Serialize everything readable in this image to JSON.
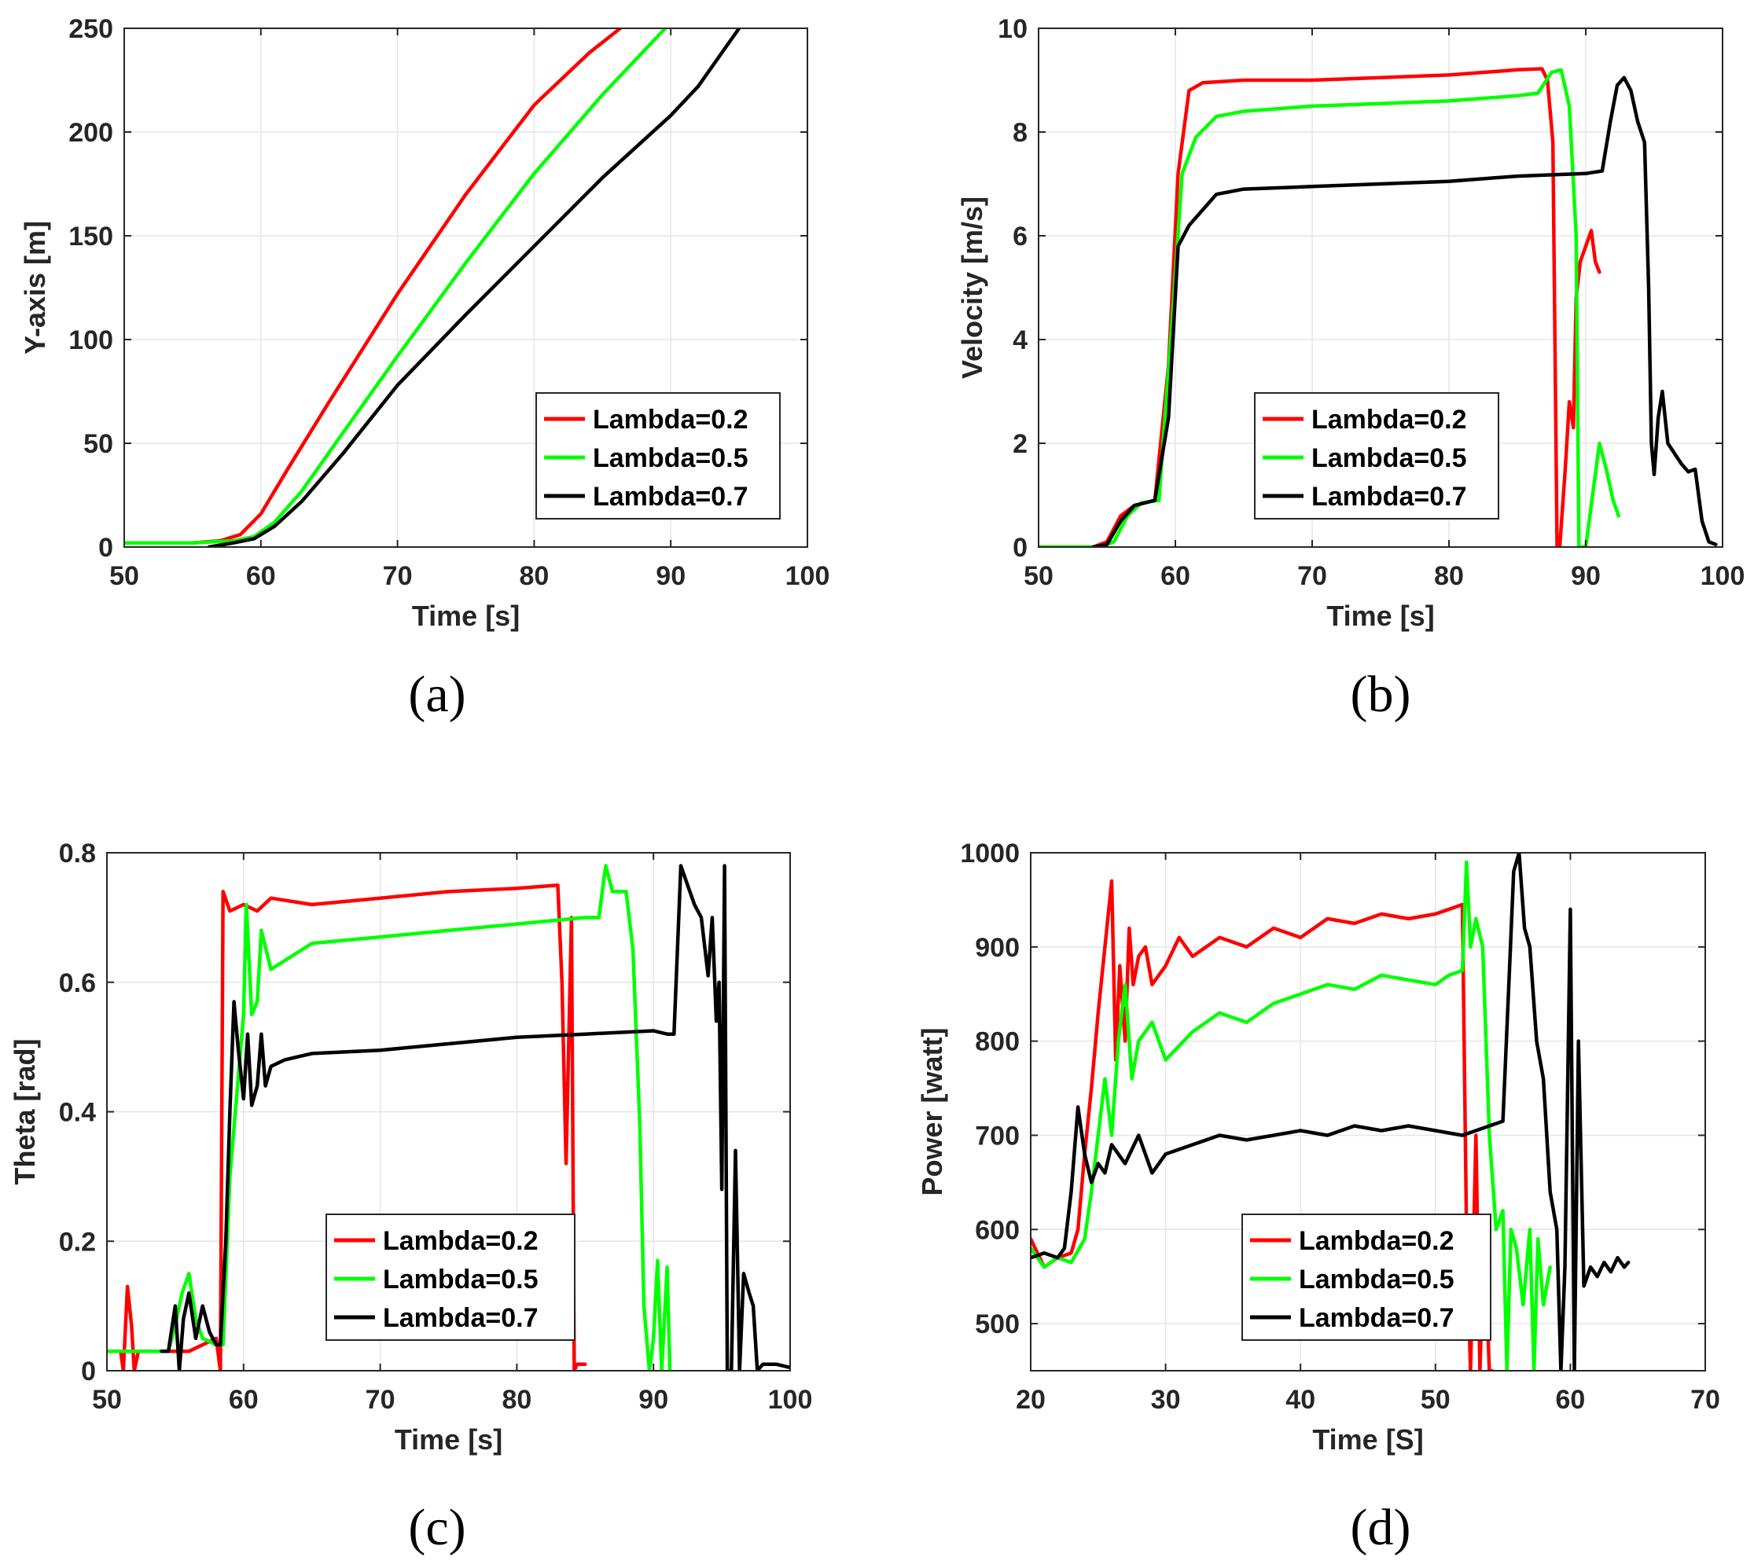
{
  "colors": {
    "red": "#ff0000",
    "green": "#00ff00",
    "black": "#000000",
    "grid": "#e6e6e6",
    "axis": "#262626"
  },
  "chart_data": [
    {
      "id": "a",
      "type": "line",
      "panel_label": "(a)",
      "xlabel": "Time [s]",
      "ylabel": "Y-axis [m]",
      "xlim": [
        50,
        100
      ],
      "ylim": [
        0,
        250
      ],
      "xticks": [
        50,
        60,
        70,
        80,
        90,
        100
      ],
      "yticks": [
        0,
        50,
        100,
        150,
        200,
        250
      ],
      "xtick_labels": [
        "50",
        "60",
        "70",
        "80",
        "90",
        "100"
      ],
      "ytick_labels": [
        "0",
        "50",
        "100",
        "150",
        "200",
        "250"
      ],
      "grid": true,
      "legend_position": "lower-right",
      "series": [
        {
          "name": "Lambda=0.2",
          "color": "#ff0000",
          "x": [
            50,
            55,
            57,
            58.5,
            60,
            62,
            65,
            70,
            75,
            80,
            84,
            86.3
          ],
          "y": [
            2,
            2,
            3,
            6,
            16,
            38,
            70,
            122,
            170,
            213,
            238,
            250
          ]
        },
        {
          "name": "Lambda=0.5",
          "color": "#00ff00",
          "x": [
            50,
            55,
            58,
            59.5,
            61,
            63,
            66,
            70,
            75,
            80,
            85,
            89.6
          ],
          "y": [
            2,
            2,
            3,
            5,
            12,
            27,
            55,
            92,
            137,
            180,
            218,
            250
          ]
        },
        {
          "name": "Lambda=0.7",
          "color": "#000000",
          "x": [
            56.2,
            58,
            59.5,
            61,
            63,
            66,
            70,
            75,
            80,
            85,
            90,
            92,
            95
          ],
          "y": [
            0,
            2,
            4,
            10,
            22,
            45,
            78,
            112,
            145,
            178,
            208,
            222,
            250
          ]
        }
      ]
    },
    {
      "id": "b",
      "type": "line",
      "panel_label": "(b)",
      "xlabel": "Time [s]",
      "ylabel": "Velocity [m/s]",
      "xlim": [
        50,
        100
      ],
      "ylim": [
        0,
        10
      ],
      "xticks": [
        50,
        60,
        70,
        80,
        90,
        100
      ],
      "yticks": [
        0,
        2,
        4,
        6,
        8,
        10
      ],
      "xtick_labels": [
        "50",
        "60",
        "70",
        "80",
        "90",
        "100"
      ],
      "ytick_labels": [
        "0",
        "2",
        "4",
        "6",
        "8",
        "10"
      ],
      "grid": true,
      "legend_position": "lower-right",
      "series": [
        {
          "name": "Lambda=0.2",
          "color": "#ff0000",
          "x": [
            50,
            54,
            55,
            56,
            57,
            58.5,
            59.5,
            60.2,
            61,
            62,
            65,
            70,
            75,
            80,
            85,
            86.8,
            87.2,
            87.6,
            87.9,
            88.1,
            88.5,
            88.8,
            89.1,
            89.3,
            89.6,
            90,
            90.4,
            90.7,
            91
          ],
          "y": [
            0,
            0,
            0.1,
            0.6,
            0.8,
            0.9,
            3.5,
            7.2,
            8.8,
            8.95,
            9.0,
            9.0,
            9.05,
            9.1,
            9.2,
            9.22,
            9.0,
            7.8,
            0,
            0,
            1.5,
            2.8,
            2.3,
            4.8,
            5.5,
            5.8,
            6.1,
            5.5,
            5.3
          ]
        },
        {
          "name": "Lambda=0.5",
          "color": "#00ff00",
          "x": [
            50,
            54.5,
            55.5,
            56.5,
            57.5,
            58.8,
            59.8,
            60.5,
            61.5,
            63,
            65,
            70,
            75,
            80,
            85,
            86.5,
            87.5,
            88.2,
            88.8,
            89.3,
            89.5,
            90,
            90.5,
            91,
            91.5,
            92,
            92.4
          ],
          "y": [
            0,
            0,
            0.1,
            0.6,
            0.85,
            0.9,
            4.5,
            7.2,
            7.9,
            8.3,
            8.4,
            8.5,
            8.55,
            8.6,
            8.7,
            8.75,
            9.15,
            9.2,
            8.5,
            6.0,
            0,
            0,
            1.0,
            2.0,
            1.5,
            0.9,
            0.6
          ]
        },
        {
          "name": "Lambda=0.7",
          "color": "#000000",
          "x": [
            54,
            55,
            56,
            57,
            58.5,
            59.5,
            60.2,
            61,
            62,
            63,
            65,
            70,
            75,
            80,
            85,
            90,
            91.2,
            91.8,
            92.3,
            92.8,
            93.3,
            93.8,
            94.3,
            94.6,
            94.8,
            95.0,
            95.3,
            95.6,
            96,
            96.5,
            97,
            97.5,
            98,
            98.5,
            99,
            99.5
          ],
          "y": [
            0,
            0.05,
            0.5,
            0.8,
            0.9,
            2.5,
            5.8,
            6.2,
            6.5,
            6.8,
            6.9,
            6.95,
            7.0,
            7.05,
            7.15,
            7.2,
            7.25,
            8.2,
            8.9,
            9.05,
            8.8,
            8.2,
            7.8,
            5.0,
            2.0,
            1.4,
            2.5,
            3.0,
            2.0,
            1.8,
            1.6,
            1.45,
            1.5,
            0.5,
            0.1,
            0.05
          ]
        }
      ]
    },
    {
      "id": "c",
      "type": "line",
      "panel_label": "(c)",
      "xlabel": "Time [s]",
      "ylabel": "Theta [rad]",
      "xlim": [
        50,
        100
      ],
      "ylim": [
        0,
        0.8
      ],
      "xticks": [
        50,
        60,
        70,
        80,
        90,
        100
      ],
      "yticks": [
        0,
        0.2,
        0.4,
        0.6,
        0.8
      ],
      "xtick_labels": [
        "50",
        "60",
        "70",
        "80",
        "90",
        "100"
      ],
      "ytick_labels": [
        "0",
        "0.2",
        "0.4",
        "0.6",
        "0.8"
      ],
      "grid": true,
      "legend_position": "lower-center",
      "series": [
        {
          "name": "Lambda=0.2",
          "color": "#ff0000",
          "x": [
            50,
            51,
            51.2,
            51.5,
            51.8,
            52,
            52.3,
            53,
            54,
            55,
            56,
            57,
            58,
            58.3,
            58.5,
            59,
            60,
            61,
            62,
            65,
            70,
            75,
            80,
            83,
            83.3,
            83.6,
            84,
            84.2,
            84.4,
            84.6,
            85
          ],
          "y": [
            0.03,
            0.03,
            0,
            0.13,
            0.07,
            0.0,
            0.03,
            0.03,
            0.03,
            0.03,
            0.03,
            0.04,
            0.05,
            0.0,
            0.74,
            0.71,
            0.72,
            0.71,
            0.73,
            0.72,
            0.73,
            0.74,
            0.745,
            0.75,
            0.6,
            0.32,
            0.7,
            0,
            0.01,
            0.01,
            0.01
          ]
        },
        {
          "name": "Lambda=0.5",
          "color": "#00ff00",
          "x": [
            50,
            53,
            54.5,
            55,
            55.5,
            56,
            56.5,
            57,
            58,
            58.5,
            59,
            60,
            60.2,
            60.6,
            61,
            61.3,
            62,
            65,
            70,
            75,
            80,
            85,
            86,
            86.5,
            87,
            88,
            88.5,
            89,
            89.3,
            89.7,
            90,
            90.3,
            90.6,
            91,
            91.2
          ],
          "y": [
            0.03,
            0.03,
            0.03,
            0.07,
            0.12,
            0.15,
            0.08,
            0.05,
            0.04,
            0.04,
            0.3,
            0.55,
            0.72,
            0.55,
            0.57,
            0.68,
            0.62,
            0.66,
            0.67,
            0.68,
            0.69,
            0.7,
            0.7,
            0.78,
            0.74,
            0.74,
            0.65,
            0.38,
            0.1,
            0,
            0.05,
            0.17,
            0,
            0.16,
            0
          ]
        },
        {
          "name": "Lambda=0.7",
          "color": "#000000",
          "x": [
            54,
            54.5,
            55,
            55.3,
            55.6,
            56,
            56.5,
            57,
            57.5,
            58,
            58.3,
            58.7,
            59,
            59.3,
            59.6,
            60,
            60.3,
            60.6,
            61,
            61.3,
            61.6,
            62,
            63,
            65,
            70,
            75,
            80,
            85,
            90,
            91,
            91.5,
            92,
            92.5,
            93,
            93.5,
            94,
            94.3,
            94.6,
            94.8,
            95,
            95.2,
            95.4,
            95.7,
            96,
            96.3,
            96.6,
            97,
            97.3,
            97.6,
            98,
            99,
            100
          ],
          "y": [
            0.03,
            0.03,
            0.1,
            0.0,
            0.08,
            0.12,
            0.05,
            0.1,
            0.06,
            0.04,
            0.04,
            0.2,
            0.4,
            0.57,
            0.5,
            0.42,
            0.52,
            0.41,
            0.44,
            0.52,
            0.44,
            0.47,
            0.48,
            0.49,
            0.495,
            0.505,
            0.515,
            0.52,
            0.525,
            0.52,
            0.52,
            0.78,
            0.75,
            0.72,
            0.7,
            0.61,
            0.7,
            0.54,
            0.6,
            0.28,
            0.78,
            0.0,
            0.0,
            0.34,
            0.0,
            0.15,
            0.12,
            0.1,
            0.0,
            0.01,
            0.01,
            0.005
          ]
        }
      ]
    },
    {
      "id": "d",
      "type": "line",
      "panel_label": "(d)",
      "xlabel": "Time [S]",
      "ylabel": "Power [watt]",
      "xlim": [
        20,
        70
      ],
      "ylim": [
        450,
        1000
      ],
      "xticks": [
        20,
        30,
        40,
        50,
        60,
        70
      ],
      "yticks": [
        500,
        600,
        700,
        800,
        900,
        1000
      ],
      "xtick_labels": [
        "20",
        "30",
        "40",
        "50",
        "60",
        "70"
      ],
      "ytick_labels": [
        "500",
        "600",
        "700",
        "800",
        "900",
        "1000"
      ],
      "grid": true,
      "legend_position": "lower-center",
      "series": [
        {
          "name": "Lambda=0.2",
          "color": "#ff0000",
          "x": [
            20,
            21,
            22,
            23,
            23.5,
            24,
            24.5,
            25,
            25.5,
            26,
            26.3,
            26.6,
            27,
            27.3,
            27.6,
            28,
            28.5,
            29,
            30,
            31,
            32,
            34,
            36,
            38,
            40,
            42,
            44,
            46,
            48,
            50,
            51,
            52,
            52.3,
            52.6,
            53,
            53.3,
            53.6,
            54,
            54.2
          ],
          "y": [
            590,
            560,
            570,
            575,
            600,
            680,
            750,
            830,
            900,
            970,
            780,
            880,
            800,
            920,
            860,
            890,
            900,
            860,
            880,
            910,
            890,
            910,
            900,
            920,
            910,
            930,
            925,
            935,
            930,
            935,
            940,
            945,
            600,
            450,
            700,
            450,
            600,
            450,
            450
          ]
        },
        {
          "name": "Lambda=0.5",
          "color": "#00ff00",
          "x": [
            20,
            21,
            22,
            23,
            24,
            24.5,
            25,
            25.5,
            26,
            26.5,
            27,
            27.5,
            28,
            29,
            30,
            32,
            34,
            36,
            38,
            40,
            42,
            44,
            46,
            48,
            50,
            51,
            52,
            52.3,
            52.6,
            53,
            53.5,
            54,
            54.5,
            55,
            55.3,
            55.6,
            56,
            56.5,
            57,
            57.3,
            57.6,
            58,
            58.5
          ],
          "y": [
            580,
            560,
            570,
            565,
            590,
            640,
            700,
            760,
            700,
            800,
            860,
            760,
            800,
            820,
            780,
            810,
            830,
            820,
            840,
            850,
            860,
            855,
            870,
            865,
            860,
            870,
            875,
            990,
            900,
            930,
            900,
            700,
            600,
            620,
            450,
            600,
            580,
            520,
            600,
            450,
            590,
            520,
            560
          ]
        },
        {
          "name": "Lambda=0.7",
          "color": "#000000",
          "x": [
            20,
            21,
            22,
            22.5,
            23,
            23.5,
            24,
            24.5,
            25,
            25.5,
            26,
            27,
            28,
            29,
            30,
            32,
            34,
            36,
            38,
            40,
            42,
            44,
            46,
            48,
            50,
            52,
            54,
            55,
            55.5,
            55.8,
            56.2,
            56.6,
            57,
            57.5,
            58,
            58.5,
            59,
            59.3,
            59.6,
            60,
            60.3,
            60.6,
            61,
            61.5,
            62,
            62.5,
            63,
            63.5,
            64,
            64.3
          ],
          "y": [
            570,
            575,
            570,
            580,
            640,
            730,
            680,
            650,
            670,
            660,
            690,
            670,
            700,
            660,
            680,
            690,
            700,
            695,
            700,
            705,
            700,
            710,
            705,
            710,
            705,
            700,
            710,
            715,
            880,
            980,
            1000,
            920,
            900,
            800,
            760,
            640,
            600,
            450,
            560,
            940,
            450,
            800,
            540,
            560,
            550,
            565,
            555,
            570,
            560,
            565
          ]
        }
      ]
    }
  ]
}
